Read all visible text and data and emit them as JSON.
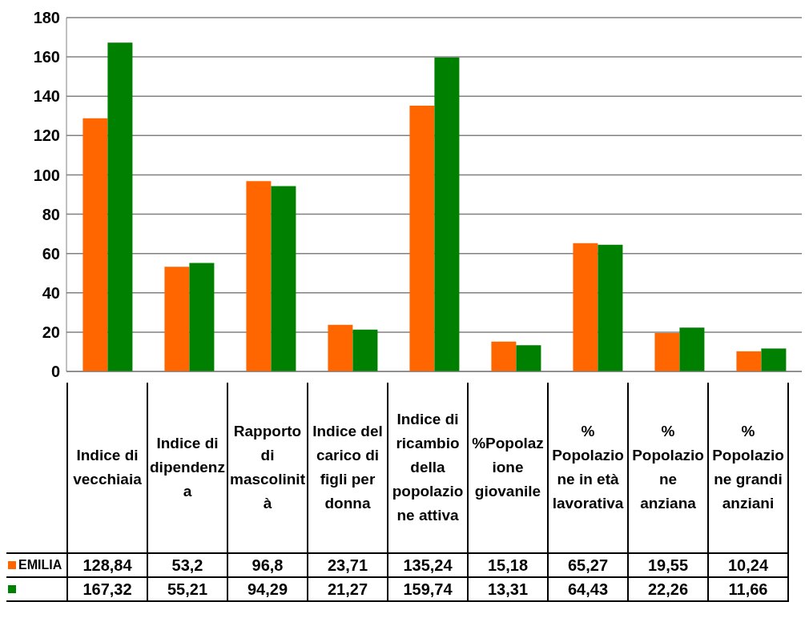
{
  "chart_data": {
    "type": "bar",
    "categories": [
      "Indice di vecchiaia",
      "Indice di dipendenza",
      "Rapporto di mascolinità",
      "Indice del carico di figli per donna",
      "Indice di ricambio della popolazione attiva",
      "%Popolazione giovanile",
      "% Popolazione in età lavorativa",
      "% Popolazione anziana",
      "% Popolazione grandi anziani"
    ],
    "series": [
      {
        "name": "EMILIA",
        "color": "#ff6600",
        "values": [
          128.84,
          53.2,
          96.8,
          23.71,
          135.24,
          15.18,
          65.27,
          19.55,
          10.24
        ],
        "value_labels": [
          "128,84",
          "53,2",
          "96,8",
          "23,71",
          "135,24",
          "15,18",
          "65,27",
          "19,55",
          "10,24"
        ]
      },
      {
        "color": "#008000",
        "values": [
          167.32,
          55.21,
          94.29,
          21.27,
          159.74,
          13.31,
          64.43,
          22.26,
          11.66
        ],
        "value_labels": [
          "167,32",
          "55,21",
          "94,29",
          "21,27",
          "159,74",
          "13,31",
          "64,43",
          "22,26",
          "11,66"
        ]
      }
    ],
    "ylim": [
      0,
      180
    ],
    "yticks": [
      0,
      20,
      40,
      60,
      80,
      100,
      120,
      140,
      160,
      180
    ],
    "grid": "y"
  }
}
